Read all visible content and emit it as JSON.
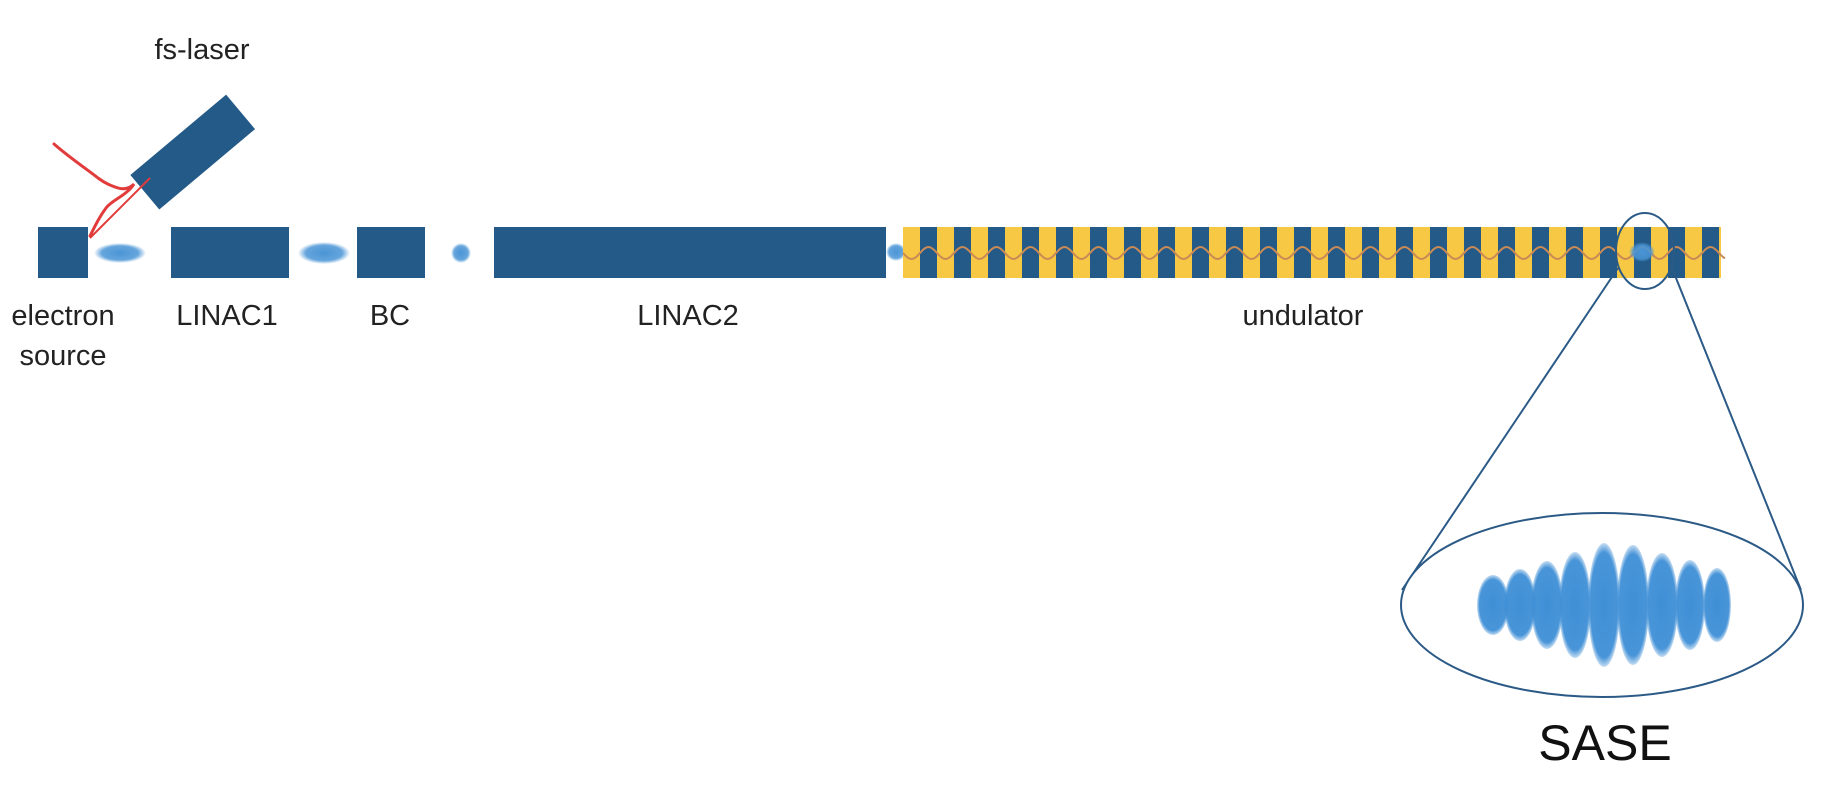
{
  "labels": {
    "fs_laser": "fs-laser",
    "electron_source_line1": "electron",
    "electron_source_line2": "source",
    "linac1": "LINAC1",
    "bc": "BC",
    "linac2": "LINAC2",
    "undulator": "undulator",
    "sase": "SASE"
  },
  "colors": {
    "component": "#235a87",
    "undulator_pole": "#f7c844",
    "bunch": "#4a95d6",
    "laser_pulse": "#e23b3b",
    "magnify_outline": "#2b5a86",
    "trajectory": "#c98a55"
  },
  "icons": {
    "laser": "laser-device-icon",
    "laser_pulse": "laser-pulse-icon",
    "bunch": "electron-bunch-icon",
    "magnifier": "magnifier-icon"
  }
}
